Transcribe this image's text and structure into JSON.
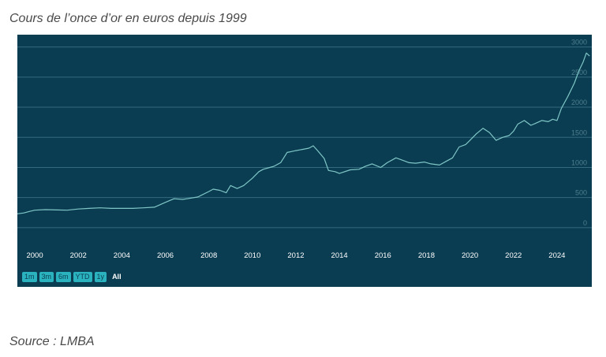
{
  "page": {
    "title": "Cours de l’once d’or en euros depuis 1999",
    "source": "Source : LMBA"
  },
  "range_selector": {
    "buttons": [
      {
        "label": "1m",
        "active": false
      },
      {
        "label": "3m",
        "active": false
      },
      {
        "label": "6m",
        "active": false
      },
      {
        "label": "YTD",
        "active": false
      },
      {
        "label": "1y",
        "active": false
      },
      {
        "label": "All",
        "active": true
      }
    ]
  },
  "colors": {
    "background": "#0b3d52",
    "line": "#7fc6c6",
    "gridline": "#336b7f",
    "tick_label": "#ffffff",
    "y_tick_label": "#4d7e8e",
    "button": "#2ab3bf"
  },
  "chart_data": {
    "type": "line",
    "title": "Cours de l’once d’or en euros depuis 1999",
    "xlabel": "",
    "ylabel": "",
    "x_range": [
      1999.2,
      2025.6
    ],
    "ylim": [
      -250,
      3100
    ],
    "x_ticks": [
      2000,
      2002,
      2004,
      2006,
      2008,
      2010,
      2012,
      2014,
      2016,
      2018,
      2020,
      2022,
      2024
    ],
    "x_tick_labels": [
      "2000",
      "2002",
      "2004",
      "2006",
      "2008",
      "2010",
      "2012",
      "2014",
      "2016",
      "2018",
      "2020",
      "2022",
      "2024"
    ],
    "y_ticks": [
      0,
      500,
      1000,
      1500,
      2000,
      2500,
      3000
    ],
    "y_tick_labels": [
      "0",
      "500",
      "1000",
      "1500",
      "2000",
      "2500",
      "3000"
    ],
    "y_axis_side": "right",
    "grid": true,
    "legend": "none",
    "series": [
      {
        "x": [
          1999.2,
          1999.5,
          1999.75,
          2000.0,
          2000.5,
          2001.0,
          2001.5,
          2002.0,
          2002.5,
          2003.0,
          2003.5,
          2004.0,
          2004.5,
          2005.0,
          2005.5,
          2006.0,
          2006.4,
          2006.8,
          2007.0,
          2007.5,
          2008.0,
          2008.2,
          2008.5,
          2008.8,
          2009.0,
          2009.3,
          2009.6,
          2010.0,
          2010.3,
          2010.5,
          2010.8,
          2011.0,
          2011.3,
          2011.6,
          2011.75,
          2012.0,
          2012.3,
          2012.6,
          2012.8,
          2013.0,
          2013.3,
          2013.5,
          2013.8,
          2014.0,
          2014.5,
          2014.9,
          2015.2,
          2015.5,
          2015.9,
          2016.2,
          2016.6,
          2016.9,
          2017.2,
          2017.5,
          2017.9,
          2018.2,
          2018.6,
          2018.9,
          2019.2,
          2019.5,
          2019.8,
          2020.0,
          2020.3,
          2020.6,
          2020.9,
          2021.2,
          2021.5,
          2021.8,
          2022.0,
          2022.2,
          2022.5,
          2022.8,
          2023.0,
          2023.3,
          2023.6,
          2023.8,
          2024.0,
          2024.2,
          2024.5,
          2024.8,
          2025.0,
          2025.2,
          2025.35,
          2025.5
        ],
        "y": [
          230,
          245,
          270,
          290,
          300,
          295,
          290,
          310,
          320,
          330,
          320,
          320,
          320,
          330,
          340,
          420,
          480,
          470,
          480,
          510,
          600,
          640,
          620,
          580,
          700,
          650,
          700,
          820,
          930,
          970,
          1000,
          1020,
          1080,
          1250,
          1260,
          1280,
          1300,
          1320,
          1360,
          1280,
          1150,
          950,
          930,
          900,
          960,
          970,
          1020,
          1060,
          1000,
          1080,
          1160,
          1120,
          1080,
          1070,
          1090,
          1060,
          1040,
          1100,
          1160,
          1340,
          1380,
          1450,
          1560,
          1650,
          1580,
          1450,
          1500,
          1530,
          1600,
          1720,
          1780,
          1700,
          1730,
          1780,
          1760,
          1800,
          1780,
          1980,
          2180,
          2400,
          2600,
          2750,
          2900,
          2850
        ]
      }
    ]
  }
}
